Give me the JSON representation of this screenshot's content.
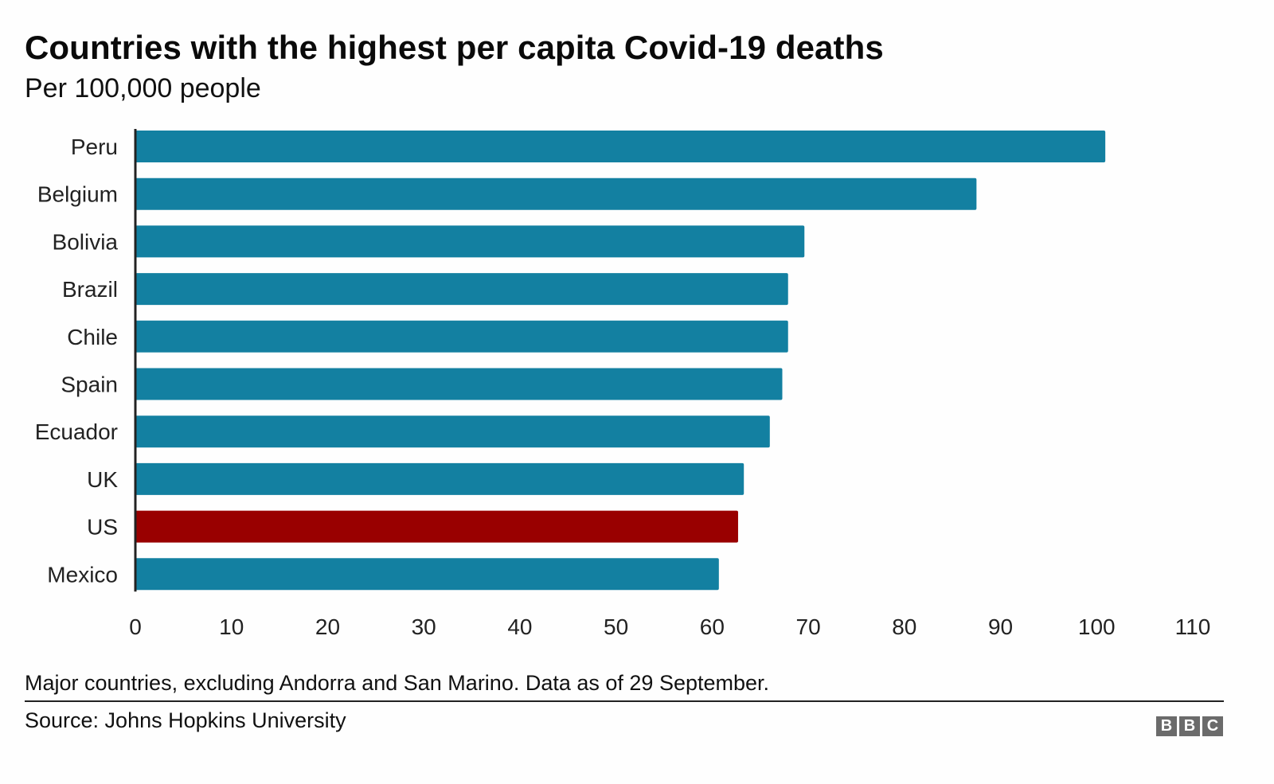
{
  "chart_data": {
    "type": "bar",
    "orientation": "horizontal",
    "title": "Countries with the highest per capita Covid-19 deaths",
    "subtitle": "Per 100,000 people",
    "xlabel": "",
    "ylabel": "",
    "xlim": [
      0,
      110
    ],
    "xticks": [
      0,
      10,
      20,
      30,
      40,
      50,
      60,
      70,
      80,
      90,
      100,
      110
    ],
    "xtick_labels": [
      "0",
      "10",
      "20",
      "30",
      "40",
      "50",
      "60",
      "70",
      "80",
      "90",
      "100",
      "110"
    ],
    "grid": false,
    "legend": null,
    "categories": [
      "Peru",
      "Belgium",
      "Bolivia",
      "Brazil",
      "Chile",
      "Spain",
      "Ecuador",
      "UK",
      "US",
      "Mexico"
    ],
    "values": [
      100.9,
      87.5,
      69.6,
      67.9,
      67.9,
      67.3,
      66.0,
      63.3,
      62.7,
      60.7
    ],
    "colors": {
      "default": "#1380a1",
      "highlight": "#990000",
      "axis": "#222222"
    },
    "highlighted": [
      "US"
    ],
    "note": "Major countries, excluding Andorra and San Marino. Data as of 29 September.",
    "source": "Source: Johns Hopkins University"
  },
  "branding": {
    "logo_letters": [
      "B",
      "B",
      "C"
    ]
  }
}
